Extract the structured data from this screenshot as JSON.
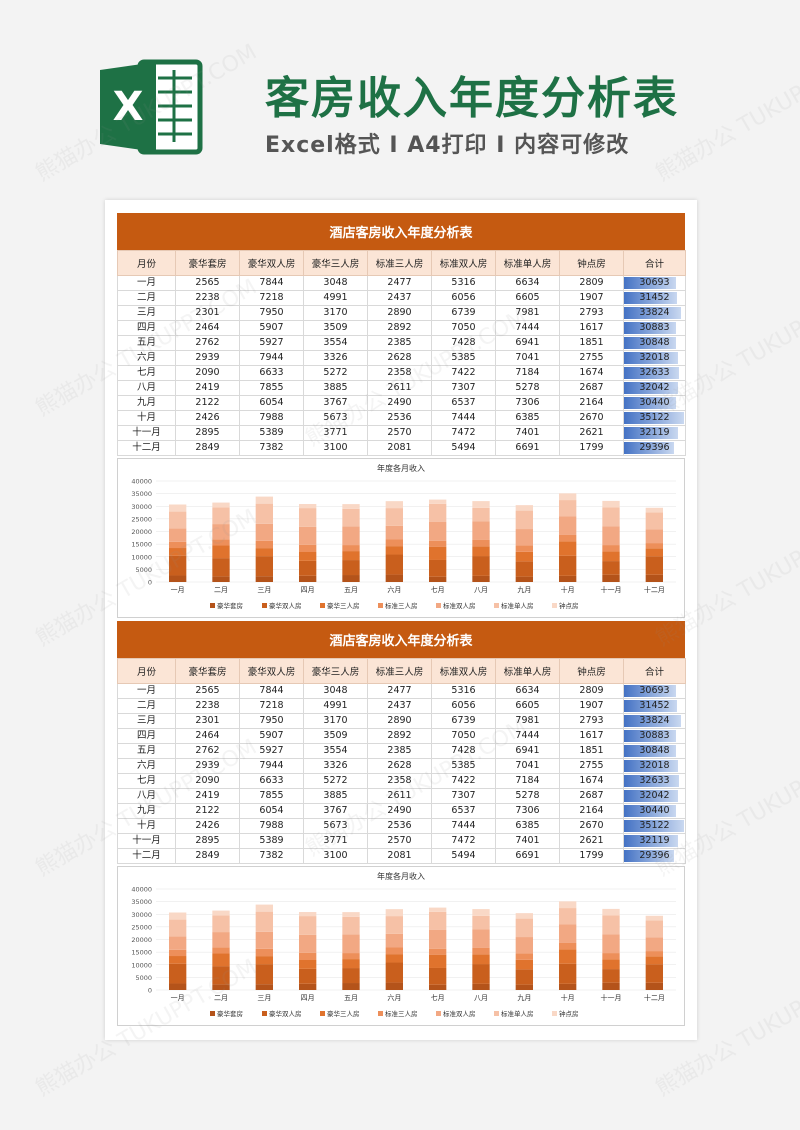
{
  "header": {
    "title": "客房收入年度分析表",
    "subtitle": "Excel格式 I A4打印 I 内容可修改",
    "icon": "excel-logo-icon",
    "accent": "#1e7145"
  },
  "watermark": "熊猫办公 TUKUPPT.COM",
  "table": {
    "title": "酒店客房收入年度分析表",
    "columns": [
      "月份",
      "豪华套房",
      "豪华双人房",
      "豪华三人房",
      "标准三人房",
      "标准双人房",
      "标准单人房",
      "钟点房",
      "合计"
    ],
    "rows": [
      [
        "一月",
        "2565",
        "7844",
        "3048",
        "2477",
        "5316",
        "6634",
        "2809",
        "30693"
      ],
      [
        "二月",
        "2238",
        "7218",
        "4991",
        "2437",
        "6056",
        "6605",
        "1907",
        "31452"
      ],
      [
        "三月",
        "2301",
        "7950",
        "3170",
        "2890",
        "6739",
        "7981",
        "2793",
        "33824"
      ],
      [
        "四月",
        "2464",
        "5907",
        "3509",
        "2892",
        "7050",
        "7444",
        "1617",
        "30883"
      ],
      [
        "五月",
        "2762",
        "5927",
        "3554",
        "2385",
        "7428",
        "6941",
        "1851",
        "30848"
      ],
      [
        "六月",
        "2939",
        "7944",
        "3326",
        "2628",
        "5385",
        "7041",
        "2755",
        "32018"
      ],
      [
        "七月",
        "2090",
        "6633",
        "5272",
        "2358",
        "7422",
        "7184",
        "1674",
        "32633"
      ],
      [
        "八月",
        "2419",
        "7855",
        "3885",
        "2611",
        "7307",
        "5278",
        "2687",
        "32042"
      ],
      [
        "九月",
        "2122",
        "6054",
        "3767",
        "2490",
        "6537",
        "7306",
        "2164",
        "30440"
      ],
      [
        "十月",
        "2426",
        "7988",
        "5673",
        "2536",
        "7444",
        "6385",
        "2670",
        "35122"
      ],
      [
        "十一月",
        "2895",
        "5389",
        "3771",
        "2570",
        "7472",
        "7401",
        "2621",
        "32119"
      ],
      [
        "十二月",
        "2849",
        "7382",
        "3100",
        "2081",
        "5494",
        "6691",
        "1799",
        "29396"
      ]
    ],
    "header_color": "#c55a11",
    "total_bar_color": "#4472c4"
  },
  "chart_data": {
    "type": "bar",
    "stacked": true,
    "title": "年度各月收入",
    "categories": [
      "一月",
      "二月",
      "三月",
      "四月",
      "五月",
      "六月",
      "七月",
      "八月",
      "九月",
      "十月",
      "十一月",
      "十二月"
    ],
    "ylim": [
      0,
      40000
    ],
    "yticks": [
      0,
      5000,
      10000,
      15000,
      20000,
      25000,
      30000,
      35000,
      40000
    ],
    "legend_position": "bottom",
    "grid": true,
    "series": [
      {
        "name": "豪华套房",
        "color": "#b4531a",
        "values": [
          2565,
          2238,
          2301,
          2464,
          2762,
          2939,
          2090,
          2419,
          2122,
          2426,
          2895,
          2849
        ]
      },
      {
        "name": "豪华双人房",
        "color": "#c95f1d",
        "values": [
          7844,
          7218,
          7950,
          5907,
          5927,
          7944,
          6633,
          7855,
          6054,
          7988,
          5389,
          7382
        ]
      },
      {
        "name": "豪华三人房",
        "color": "#e0732d",
        "values": [
          3048,
          4991,
          3170,
          3509,
          3554,
          3326,
          5272,
          3885,
          3767,
          5673,
          3771,
          3100
        ]
      },
      {
        "name": "标准三人房",
        "color": "#ed8f5a",
        "values": [
          2477,
          2437,
          2890,
          2892,
          2385,
          2628,
          2358,
          2611,
          2490,
          2536,
          2570,
          2081
        ]
      },
      {
        "name": "标准双人房",
        "color": "#f2a883",
        "values": [
          5316,
          6056,
          6739,
          7050,
          7428,
          5385,
          7422,
          7307,
          6537,
          7444,
          7472,
          5494
        ]
      },
      {
        "name": "标准单人房",
        "color": "#f6c1a6",
        "values": [
          6634,
          6605,
          7981,
          7444,
          6941,
          7041,
          7184,
          5278,
          7306,
          6385,
          7401,
          6691
        ]
      },
      {
        "name": "钟点房",
        "color": "#f9d8c6",
        "values": [
          2809,
          1907,
          2793,
          1617,
          1851,
          2755,
          1674,
          2687,
          2164,
          2670,
          2621,
          1799
        ]
      }
    ]
  }
}
